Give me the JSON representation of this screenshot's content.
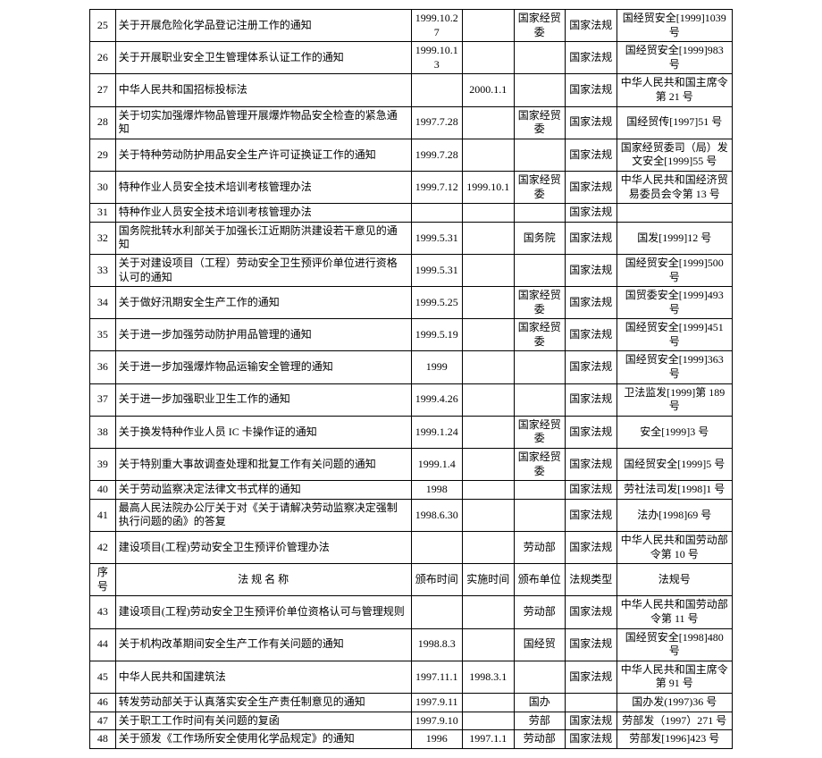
{
  "columns": {
    "width_pct": [
      4,
      46,
      8,
      8,
      8,
      8,
      18
    ],
    "align": [
      "center",
      "left",
      "center",
      "center",
      "center",
      "center",
      "center"
    ]
  },
  "header": {
    "num": "序号",
    "name": "法 规 名 称",
    "date1": "颁布时间",
    "date2": "实施时间",
    "dept": "颁布单位",
    "type": "法规类型",
    "code": "法规号"
  },
  "rows": [
    {
      "n": "25",
      "name": "关于开展危险化学品登记注册工作的通知",
      "d1": "1999.10.27",
      "d2": "",
      "dept": "国家经贸委",
      "type": "国家法规",
      "code": "国经贸安全[1999]1039 号"
    },
    {
      "n": "26",
      "name": "关于开展职业安全卫生管理体系认证工作的通知",
      "d1": "1999.10.13",
      "d2": "",
      "dept": "",
      "type": "国家法规",
      "code": "国经贸安全[1999]983 号"
    },
    {
      "n": "27",
      "name": "中华人民共和国招标投标法",
      "d1": "",
      "d2": "2000.1.1",
      "dept": "",
      "type": "国家法规",
      "code": "中华人民共和国主席令第 21 号"
    },
    {
      "n": "28",
      "name": "关于切实加强爆炸物品管理开展爆炸物品安全检查的紧急通知",
      "d1": "1997.7.28",
      "d2": "",
      "dept": "国家经贸委",
      "type": "国家法规",
      "code": "国经贸传[1997]51 号"
    },
    {
      "n": "29",
      "name": "关于特种劳动防护用品安全生产许可证换证工作的通知",
      "d1": "1999.7.28",
      "d2": "",
      "dept": "",
      "type": "国家法规",
      "code": "国家经贸委司（局）发文安全[1999]55 号"
    },
    {
      "n": "30",
      "name": "特种作业人员安全技术培训考核管理办法",
      "d1": "1999.7.12",
      "d2": "1999.10.1",
      "dept": "国家经贸委",
      "type": "国家法规",
      "code": "中华人民共和国经济贸易委员会令第 13 号"
    },
    {
      "n": "31",
      "name": "特种作业人员安全技术培训考核管理办法",
      "d1": "",
      "d2": "",
      "dept": "",
      "type": "国家法规",
      "code": ""
    },
    {
      "n": "32",
      "name": "国务院批转水利部关于加强长江近期防洪建设若干意见的通知",
      "d1": "1999.5.31",
      "d2": "",
      "dept": "国务院",
      "type": "国家法规",
      "code": "国发[1999]12 号"
    },
    {
      "n": "33",
      "name": "关于对建设项目（工程）劳动安全卫生预评价单位进行资格认可的通知",
      "d1": "1999.5.31",
      "d2": "",
      "dept": "",
      "type": "国家法规",
      "code": "国经贸安全[1999]500 号"
    },
    {
      "n": "34",
      "name": "关于做好汛期安全生产工作的通知",
      "d1": "1999.5.25",
      "d2": "",
      "dept": "国家经贸委",
      "type": "国家法规",
      "code": "国贸委安全[1999]493 号"
    },
    {
      "n": "35",
      "name": "关于进一步加强劳动防护用品管理的通知",
      "d1": "1999.5.19",
      "d2": "",
      "dept": "国家经贸委",
      "type": "国家法规",
      "code": "国经贸安全[1999]451 号"
    },
    {
      "n": "36",
      "name": "关于进一步加强爆炸物品运输安全管理的通知",
      "d1": "1999",
      "d2": "",
      "dept": "",
      "type": "国家法规",
      "code": "国经贸安全[1999]363 号"
    },
    {
      "n": "37",
      "name": "关于进一步加强职业卫生工作的通知",
      "d1": "1999.4.26",
      "d2": "",
      "dept": "",
      "type": "国家法规",
      "code": "卫法监发[1999]第 189 号"
    },
    {
      "n": "38",
      "name": "关于换发特种作业人员 IC 卡操作证的通知",
      "d1": "1999.1.24",
      "d2": "",
      "dept": "国家经贸委",
      "type": "国家法规",
      "code": "安全[1999]3 号"
    },
    {
      "n": "39",
      "name": "关于特别重大事故调查处理和批复工作有关问题的通知",
      "d1": "1999.1.4",
      "d2": "",
      "dept": "国家经贸委",
      "type": "国家法规",
      "code": "国经贸安全[1999]5 号"
    },
    {
      "n": "40",
      "name": "关于劳动监察决定法律文书式样的通知",
      "d1": "1998",
      "d2": "",
      "dept": "",
      "type": "国家法规",
      "code": "劳社法司发[1998]1 号"
    },
    {
      "n": "41",
      "name": "最高人民法院办公厅关于对《关于请解决劳动监察决定强制执行问题的函》的答复",
      "d1": "1998.6.30",
      "d2": "",
      "dept": "",
      "type": "国家法规",
      "code": "法办[1998]69 号"
    },
    {
      "n": "42",
      "name": "建设项目(工程)劳动安全卫生预评价管理办法",
      "d1": "",
      "d2": "",
      "dept": "劳动部",
      "type": "国家法规",
      "code": "中华人民共和国劳动部令第 10 号"
    },
    {
      "header": true
    },
    {
      "n": "43",
      "name": "建设项目(工程)劳动安全卫生预评价单位资格认可与管理规则",
      "d1": "",
      "d2": "",
      "dept": "劳动部",
      "type": "国家法规",
      "code": "中华人民共和国劳动部令第 11 号"
    },
    {
      "n": "44",
      "name": "关于机构改革期间安全生产工作有关问题的通知",
      "d1": "1998.8.3",
      "d2": "",
      "dept": "国经贸",
      "type": "国家法规",
      "code": "国经贸安全[1998]480 号"
    },
    {
      "n": "45",
      "name": "中华人民共和国建筑法",
      "d1": "1997.11.1",
      "d2": "1998.3.1",
      "dept": "",
      "type": "国家法规",
      "code": "中华人民共和国主席令第 91 号"
    },
    {
      "n": "46",
      "name": "转发劳动部关于认真落实安全生产责任制意见的通知",
      "d1": "1997.9.11",
      "d2": "",
      "dept": "国办",
      "type": "",
      "code": "国办发(1997)36 号"
    },
    {
      "n": "47",
      "name": "关于职工工作时间有关问题的复函",
      "d1": "1997.9.10",
      "d2": "",
      "dept": "劳部",
      "type": "国家法规",
      "code": "劳部发（1997）271 号"
    },
    {
      "n": "48",
      "name": "关于颁发《工作场所安全使用化学品规定》的通知",
      "d1": "1996",
      "d2": "1997.1.1",
      "dept": "劳动部",
      "type": "国家法规",
      "code": "劳部发[1996]423 号"
    }
  ]
}
